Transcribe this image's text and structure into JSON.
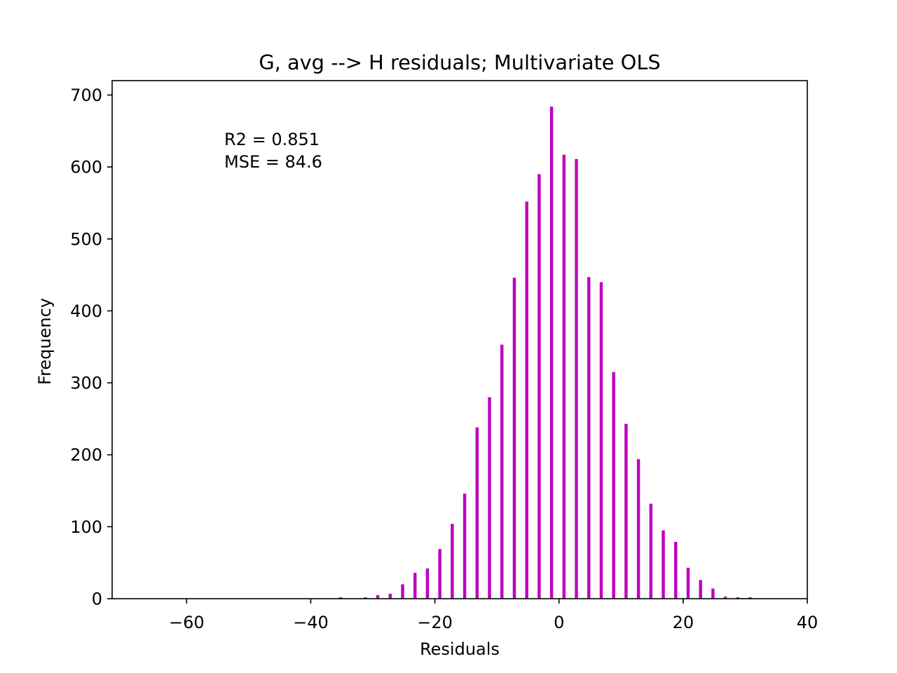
{
  "chart_data": {
    "type": "bar",
    "title": "G, avg --> H residuals; Multivariate OLS",
    "xlabel": "Residuals",
    "ylabel": "Frequency",
    "xlim": [
      -72,
      40
    ],
    "ylim": [
      0,
      720
    ],
    "xticks": [
      -60,
      -40,
      -20,
      0,
      20,
      40
    ],
    "xtick_labels": [
      "−60",
      "−40",
      "−20",
      "0",
      "20",
      "40"
    ],
    "yticks": [
      0,
      100,
      200,
      300,
      400,
      500,
      600,
      700
    ],
    "ytick_labels": [
      "0",
      "100",
      "200",
      "300",
      "400",
      "500",
      "600",
      "700"
    ],
    "grid": false,
    "bar_color": "#bf00bf",
    "bar_width": 0.5,
    "annotation_lines": [
      "R2 = 0.851",
      "MSE = 84.6"
    ],
    "x": [
      -35.2,
      -31.2,
      -29.2,
      -27.2,
      -25.2,
      -23.2,
      -21.2,
      -19.2,
      -17.2,
      -15.2,
      -13.2,
      -11.2,
      -9.2,
      -7.2,
      -5.2,
      -3.2,
      -1.2,
      0.8,
      2.8,
      4.8,
      6.8,
      8.8,
      10.8,
      12.8,
      14.8,
      16.8,
      18.8,
      20.8,
      22.8,
      24.8,
      26.8,
      28.8,
      30.8,
      32.8
    ],
    "values": [
      2,
      2,
      5,
      7,
      20,
      36,
      42,
      69,
      104,
      146,
      238,
      280,
      353,
      446,
      552,
      590,
      684,
      617,
      611,
      447,
      440,
      315,
      243,
      194,
      132,
      95,
      79,
      43,
      26,
      14,
      3,
      2,
      2,
      0
    ]
  }
}
